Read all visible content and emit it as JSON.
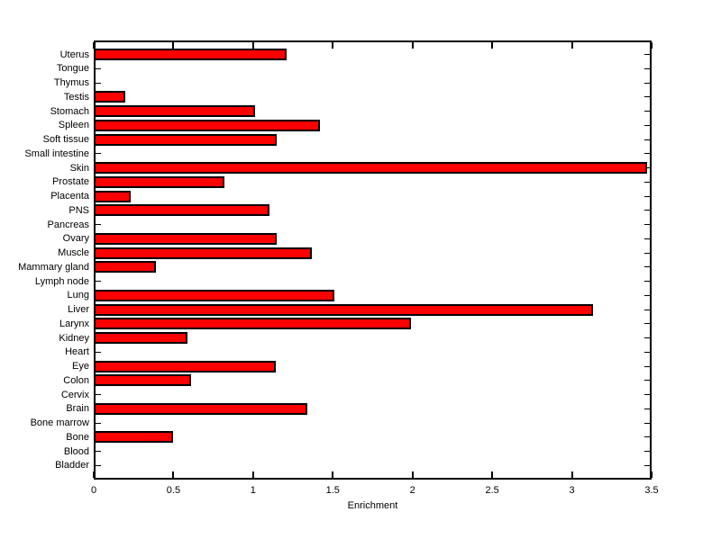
{
  "figure": {
    "background_color": "#ffffff"
  },
  "chart_data": {
    "type": "bar",
    "orientation": "horizontal",
    "title": "",
    "xlabel": "Enrichment",
    "ylabel": "",
    "xlim": [
      0,
      3.5
    ],
    "x_ticks": [
      0,
      0.5,
      1,
      1.5,
      2,
      2.5,
      3,
      3.5
    ],
    "x_tick_labels": [
      "0",
      "0.5",
      "1",
      "1.5",
      "2",
      "2.5",
      "3",
      "3.5"
    ],
    "grid": false,
    "legend": null,
    "bar_color": "#ff0000",
    "bar_edge_color": "#000000",
    "axis_color": "#000000",
    "categories": [
      "Uterus",
      "Tongue",
      "Thymus",
      "Testis",
      "Stomach",
      "Spleen",
      "Soft tissue",
      "Small intestine",
      "Skin",
      "Prostate",
      "Placenta",
      "PNS",
      "Pancreas",
      "Ovary",
      "Muscle",
      "Mammary gland",
      "Lymph node",
      "Lung",
      "Liver",
      "Larynx",
      "Kidney",
      "Heart",
      "Eye",
      "Colon",
      "Cervix",
      "Brain",
      "Bone marrow",
      "Bone",
      "Blood",
      "Bladder"
    ],
    "values": [
      1.21,
      0,
      0,
      0.2,
      1.01,
      1.42,
      1.15,
      0,
      3.47,
      0.82,
      0.23,
      1.1,
      0,
      1.15,
      1.37,
      0.39,
      0,
      1.51,
      3.13,
      1.99,
      0.59,
      0,
      1.14,
      0.61,
      0,
      1.34,
      0,
      0.5,
      0,
      0
    ]
  }
}
